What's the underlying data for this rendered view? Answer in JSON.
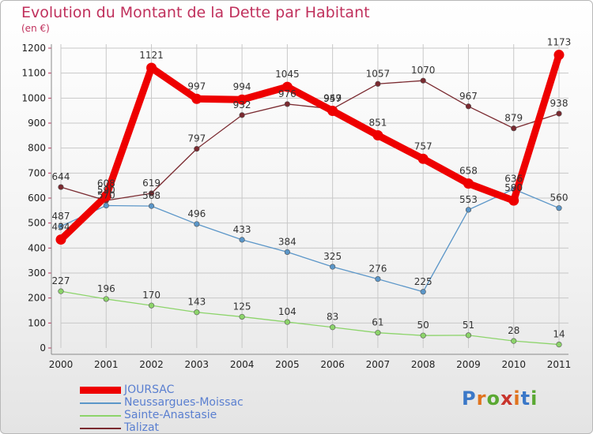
{
  "header": {
    "title": "Evolution du Montant de la Dette par Habitant",
    "unit": "(en €)"
  },
  "brand": {
    "text": "Proxiti",
    "letter_colors": [
      "#3b78c8",
      "#e0731e",
      "#5aa832",
      "#c8342c",
      "#e0731e",
      "#3b78c8",
      "#5aa832"
    ]
  },
  "colors": {
    "title": "#c0305c",
    "grid": "#c8c8c8",
    "axis_text": "#222222",
    "value_text": "#333333"
  },
  "chart_data": {
    "type": "line",
    "title": "Evolution du Montant de la Dette par Habitant",
    "ylabel": "(en €)",
    "xlabel": "",
    "x": [
      "2000",
      "2001",
      "2002",
      "2003",
      "2004",
      "2005",
      "2006",
      "2007",
      "2008",
      "2009",
      "2010",
      "2011"
    ],
    "ylim": [
      0,
      1200
    ],
    "yticks": [
      0,
      100,
      200,
      300,
      400,
      500,
      600,
      700,
      800,
      900,
      1000,
      1100,
      1200
    ],
    "grid": true,
    "legend_position": "bottom-left",
    "series": [
      {
        "name": "JOURSAC",
        "color": "#ee0000",
        "values": [
          434,
          608,
          1121,
          997,
          994,
          1045,
          949,
          851,
          757,
          658,
          590,
          1173
        ],
        "labels": [
          "434",
          "608",
          "1121",
          "997",
          "994",
          "1045",
          "949",
          "851",
          "757",
          "658",
          "590",
          "1173"
        ]
      },
      {
        "name": "Neussargues-Moissac",
        "color": "#5b96c8",
        "values": [
          487,
          570,
          568,
          496,
          433,
          384,
          325,
          276,
          225,
          553,
          636,
          560
        ],
        "labels": [
          "487",
          "570",
          "568",
          "496",
          "433",
          "384",
          "325",
          "276",
          "225",
          "553",
          "636",
          "560"
        ]
      },
      {
        "name": "Sainte-Anastasie",
        "color": "#8cd46a",
        "values": [
          227,
          196,
          170,
          143,
          125,
          104,
          83,
          61,
          50,
          51,
          28,
          14
        ],
        "labels": [
          "227",
          "196",
          "170",
          "143",
          "125",
          "104",
          "83",
          "61",
          "50",
          "51",
          "28",
          "14"
        ]
      },
      {
        "name": "Talizat",
        "color": "#7a2a30",
        "values": [
          644,
          590,
          619,
          797,
          932,
          976,
          957,
          1057,
          1070,
          967,
          879,
          938
        ],
        "labels": [
          "644",
          "590",
          "619",
          "797",
          "932",
          "976",
          "957",
          "1057",
          "1070",
          "967",
          "879",
          "938"
        ]
      }
    ]
  }
}
